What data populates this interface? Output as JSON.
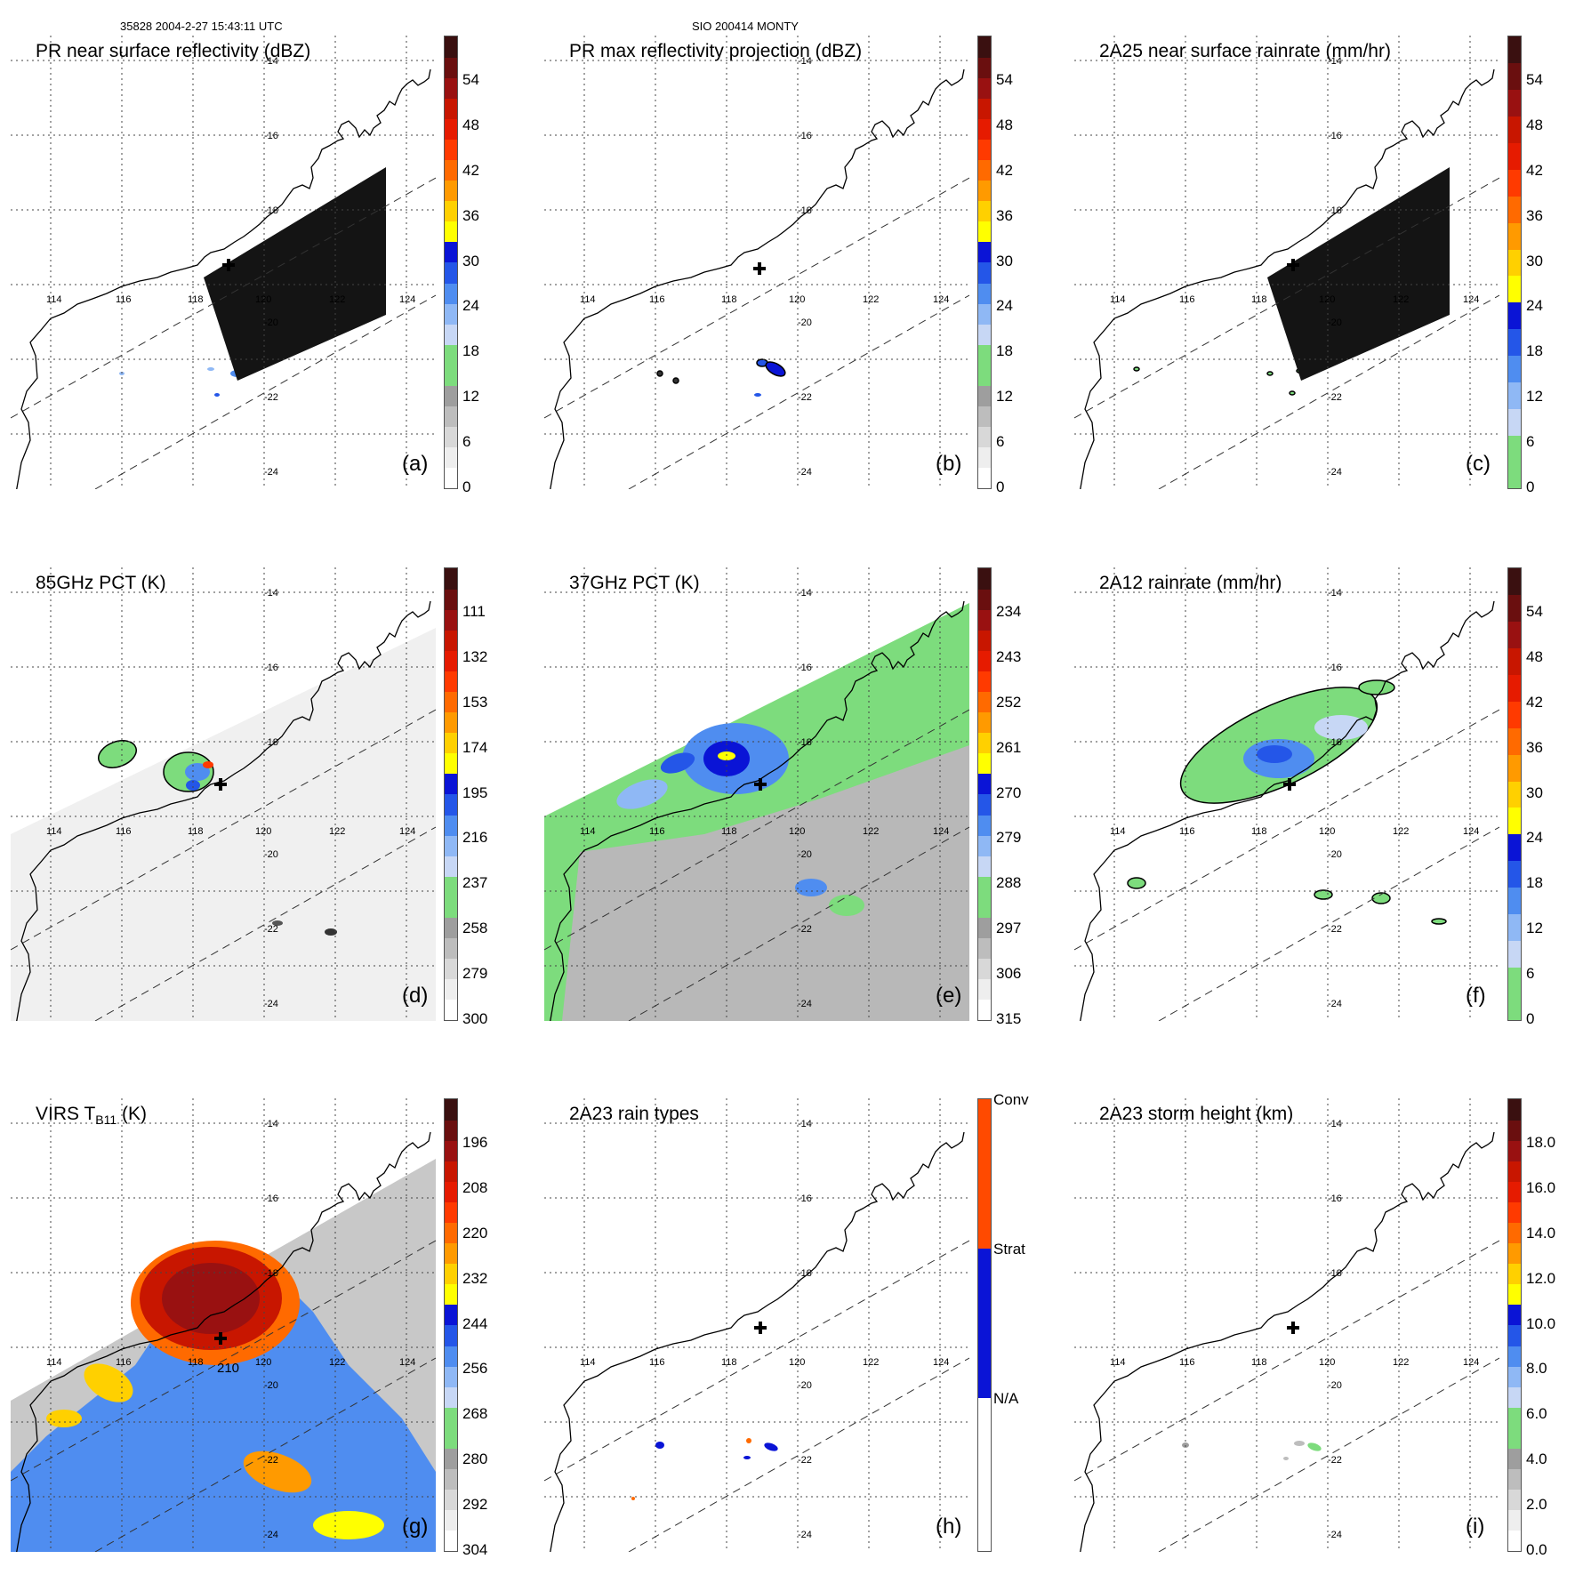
{
  "header": {
    "left": "35828 2004-2-27 15:43:11 UTC",
    "center": "SIO 200414 MONTY"
  },
  "colors": {
    "missing_swath": "#141414",
    "coast": "#000000",
    "accent_green": "#7ddc7d"
  },
  "map_axes": {
    "lon_ticks": [
      "114",
      "116",
      "118",
      "120",
      "122",
      "124"
    ],
    "lat_ticks": [
      "-14",
      "-16",
      "-18",
      "-20",
      "-22",
      "-24"
    ]
  },
  "panels": [
    {
      "id": "a",
      "title": "PR near surface reflectivity (dBZ)",
      "label": "(a)",
      "bar": "dbz",
      "ticks": [
        "54",
        "48",
        "42",
        "36",
        "30",
        "24",
        "18",
        "12",
        "6",
        "0"
      ],
      "swath": "pr",
      "missing": true,
      "field": "pr_refl"
    },
    {
      "id": "b",
      "title": "PR max reflectivity projection (dBZ)",
      "label": "(b)",
      "bar": "dbz",
      "ticks": [
        "54",
        "48",
        "42",
        "36",
        "30",
        "24",
        "18",
        "12",
        "6",
        "0"
      ],
      "swath": "pr",
      "missing": false,
      "field": "pr_max"
    },
    {
      "id": "c",
      "title": "2A25 near surface rainrate (mm/hr)",
      "label": "(c)",
      "bar": "rain",
      "ticks": [
        "54",
        "48",
        "42",
        "36",
        "30",
        "24",
        "18",
        "12",
        "6",
        "0"
      ],
      "swath": "pr",
      "missing": true,
      "field": "pr_rain"
    },
    {
      "id": "d",
      "title": "85GHz PCT (K)",
      "label": "(d)",
      "bar": "pct",
      "ticks": [
        "111",
        "132",
        "153",
        "174",
        "195",
        "216",
        "237",
        "258",
        "279",
        "300"
      ],
      "swath": "tmi",
      "missing": false,
      "field": "pct85"
    },
    {
      "id": "e",
      "title": "37GHz PCT (K)",
      "label": "(e)",
      "bar": "pct",
      "ticks": [
        "234",
        "243",
        "252",
        "261",
        "270",
        "279",
        "288",
        "297",
        "306",
        "315"
      ],
      "swath": "tmi",
      "missing": false,
      "field": "pct37"
    },
    {
      "id": "f",
      "title": "2A12 rainrate (mm/hr)",
      "label": "(f)",
      "bar": "rain",
      "ticks": [
        "54",
        "48",
        "42",
        "36",
        "30",
        "24",
        "18",
        "12",
        "6",
        "0"
      ],
      "swath": "tmi",
      "missing": false,
      "field": "rain2a12"
    },
    {
      "id": "g",
      "title": "VIRS T",
      "title_sub": "B11",
      "title_tail": " (K)",
      "label": "(g)",
      "bar": "virs",
      "ticks": [
        "196",
        "208",
        "220",
        "232",
        "244",
        "256",
        "268",
        "280",
        "292",
        "304"
      ],
      "swath": "virs",
      "missing": false,
      "field": "virs"
    },
    {
      "id": "h",
      "title": "2A23 rain types",
      "label": "(h)",
      "bar": "types",
      "ticks": [
        "Conv",
        "Strat",
        "N/A"
      ],
      "swath": "pr",
      "missing": false,
      "field": "types"
    },
    {
      "id": "i",
      "title": "2A23 storm height (km)",
      "label": "(i)",
      "bar": "height",
      "ticks": [
        "18.0",
        "16.0",
        "14.0",
        "12.0",
        "10.0",
        "8.0",
        "6.0",
        "4.0",
        "2.0",
        "0.0"
      ],
      "swath": "pr",
      "missing": false,
      "field": "height"
    }
  ],
  "contour_label": "210",
  "chart_data": {
    "type": "heatmap",
    "title": "SIO 200414 MONTY",
    "subtitle": "35828 2004-2-27 15:43:11 UTC",
    "map_extent": {
      "lon": [
        113,
        126
      ],
      "lat": [
        -25.5,
        -13.5
      ]
    },
    "storm_center": {
      "lon": 119.2,
      "lat": -19.6
    },
    "panels": [
      {
        "id": "a",
        "variable": "PR near surface reflectivity",
        "units": "dBZ",
        "colorbar_range": [
          0,
          60
        ],
        "colorbar_ticks": [
          0,
          6,
          12,
          18,
          24,
          30,
          36,
          42,
          48,
          54
        ]
      },
      {
        "id": "b",
        "variable": "PR max reflectivity projection",
        "units": "dBZ",
        "colorbar_range": [
          0,
          60
        ],
        "colorbar_ticks": [
          0,
          6,
          12,
          18,
          24,
          30,
          36,
          42,
          48,
          54
        ]
      },
      {
        "id": "c",
        "variable": "2A25 near surface rainrate",
        "units": "mm/hr",
        "colorbar_range": [
          0,
          60
        ],
        "colorbar_ticks": [
          0,
          6,
          12,
          18,
          24,
          30,
          36,
          42,
          48,
          54
        ]
      },
      {
        "id": "d",
        "variable": "85GHz PCT",
        "units": "K",
        "colorbar_range": [
          90,
          300
        ],
        "colorbar_ticks": [
          111,
          132,
          153,
          174,
          195,
          216,
          237,
          258,
          279,
          300
        ]
      },
      {
        "id": "e",
        "variable": "37GHz PCT",
        "units": "K",
        "colorbar_range": [
          225,
          315
        ],
        "colorbar_ticks": [
          234,
          243,
          252,
          261,
          270,
          279,
          288,
          297,
          306,
          315
        ]
      },
      {
        "id": "f",
        "variable": "2A12 rainrate",
        "units": "mm/hr",
        "colorbar_range": [
          0,
          60
        ],
        "colorbar_ticks": [
          0,
          6,
          12,
          18,
          24,
          30,
          36,
          42,
          48,
          54
        ]
      },
      {
        "id": "g",
        "variable": "VIRS TB11",
        "units": "K",
        "colorbar_range": [
          184,
          304
        ],
        "colorbar_ticks": [
          196,
          208,
          220,
          232,
          244,
          256,
          268,
          280,
          292,
          304
        ],
        "contour_level": 210
      },
      {
        "id": "h",
        "variable": "2A23 rain types",
        "units": "",
        "categories": [
          "N/A",
          "Strat",
          "Conv"
        ]
      },
      {
        "id": "i",
        "variable": "2A23 storm height",
        "units": "km",
        "colorbar_range": [
          0,
          20
        ],
        "colorbar_ticks": [
          0,
          2,
          4,
          6,
          8,
          10,
          12,
          14,
          16,
          18
        ]
      }
    ]
  }
}
